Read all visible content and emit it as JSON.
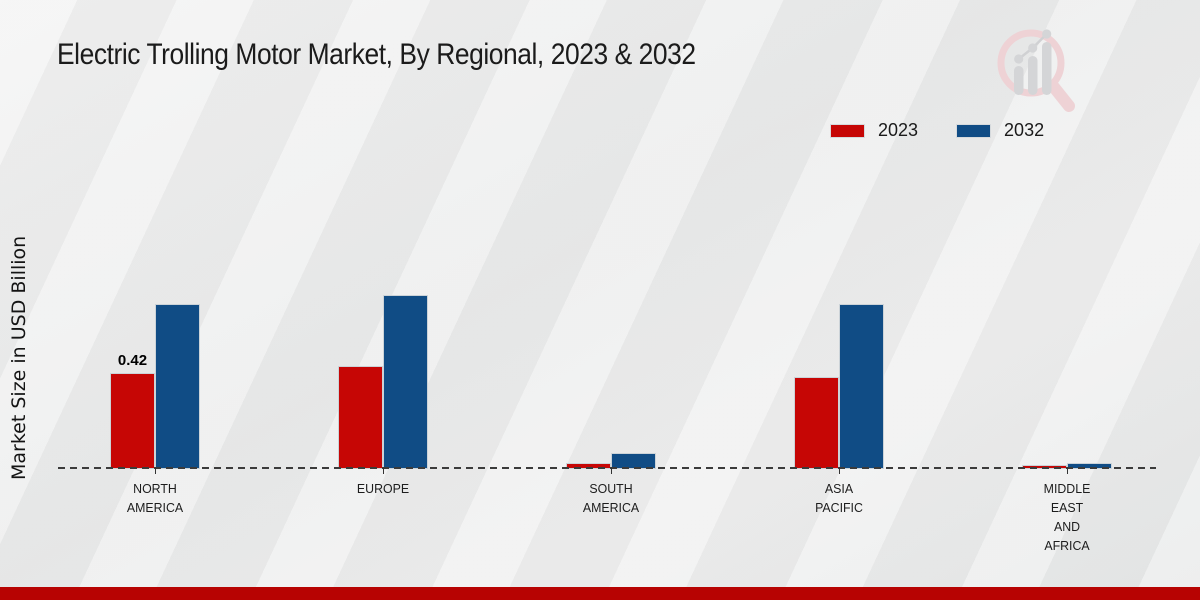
{
  "title": "Electric Trolling Motor Market, By Regional, 2023 & 2032",
  "ylabel": "Market Size in USD Billion",
  "legend": [
    {
      "label": "2023",
      "color": "#c60605"
    },
    {
      "label": "2032",
      "color": "#104c85"
    }
  ],
  "footer_bar_color": "#b70302",
  "logo_name": "growth-chart-magnifier-logo",
  "chart_data": {
    "type": "bar",
    "title": "Electric Trolling Motor Market, By Regional, 2023 & 2032",
    "xlabel": "",
    "ylabel": "Market Size in USD Billion",
    "categories": [
      "NORTH AMERICA",
      "EUROPE",
      "SOUTH AMERICA",
      "ASIA PACIFIC",
      "MIDDLE EAST AND AFRICA"
    ],
    "series": [
      {
        "name": "2023",
        "color": "#c60605",
        "values": [
          0.42,
          0.45,
          0.025,
          0.4,
          0.018
        ]
      },
      {
        "name": "2032",
        "color": "#104c85",
        "values": [
          0.72,
          0.76,
          0.07,
          0.72,
          0.028
        ]
      }
    ],
    "data_labels": [
      {
        "category": "NORTH AMERICA",
        "series": "2023",
        "text": "0.42"
      }
    ],
    "ylim": [
      0,
      0.85
    ],
    "grid": false,
    "y_axis_ticks_visible": false,
    "baseline_style": "dashed",
    "legend_position": "top-right"
  }
}
